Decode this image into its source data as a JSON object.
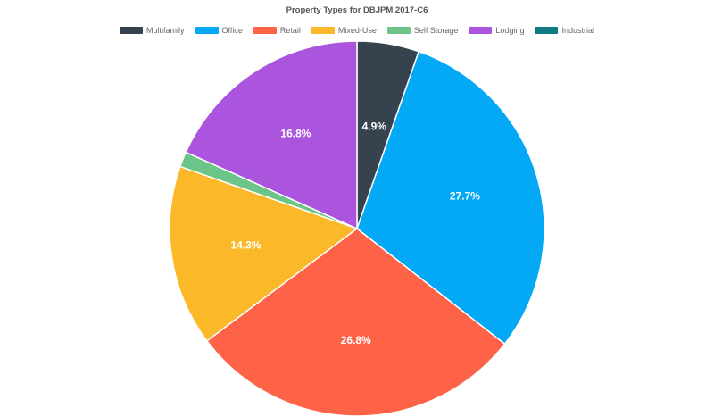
{
  "chart_data": {
    "type": "pie",
    "title": "Property Types for DBJPM 2017-C6",
    "legend_position": "top",
    "slices": [
      {
        "name": "Multifamily",
        "value": 4.9,
        "label": "4.9%",
        "color": "#36434f"
      },
      {
        "name": "Office",
        "value": 27.7,
        "label": "27.7%",
        "color": "#03a9f4"
      },
      {
        "name": "Retail",
        "value": 26.8,
        "label": "26.8%",
        "color": "#ff6347"
      },
      {
        "name": "Mixed-Use",
        "value": 14.3,
        "label": "14.3%",
        "color": "#fbb829"
      },
      {
        "name": "Self Storage",
        "value": 1.2,
        "label": "",
        "color": "#6cc489"
      },
      {
        "name": "Lodging",
        "value": 16.8,
        "label": "16.8%",
        "color": "#ab54dd"
      },
      {
        "name": "Industrial",
        "value": 0.0,
        "label": "",
        "color": "#0d7a84"
      }
    ]
  }
}
